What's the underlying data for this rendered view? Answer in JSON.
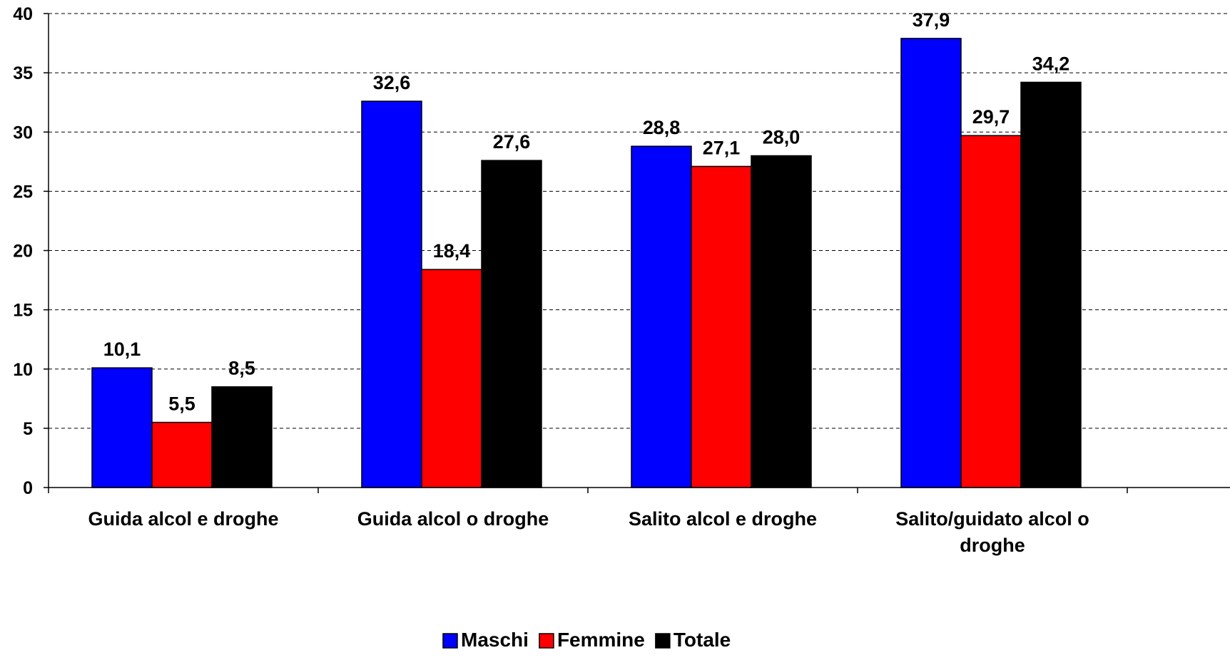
{
  "chart_data": {
    "type": "bar",
    "categories": [
      [
        "Guida alcol e droghe"
      ],
      [
        "Guida alcol o droghe"
      ],
      [
        "Salito alcol e droghe"
      ],
      [
        "Salito/guidato alcol o",
        "droghe"
      ]
    ],
    "series": [
      {
        "name": "Maschi",
        "color": "#0000FF",
        "values": [
          10.1,
          32.6,
          28.8,
          37.9
        ],
        "labels": [
          "10,1",
          "32,6",
          "28,8",
          "37,9"
        ]
      },
      {
        "name": "Femmine",
        "color": "#FF0000",
        "values": [
          5.5,
          18.4,
          27.1,
          29.7
        ],
        "labels": [
          "5,5",
          "18,4",
          "27,1",
          "29,7"
        ]
      },
      {
        "name": "Totale",
        "color": "#000000",
        "values": [
          8.5,
          27.6,
          28.0,
          34.2
        ],
        "labels": [
          "8,5",
          "27,6",
          "28,0",
          "34,2"
        ]
      }
    ],
    "ylim": [
      0,
      40
    ],
    "yticks": [
      0,
      5,
      10,
      15,
      20,
      25,
      30,
      35,
      40
    ],
    "grid": true,
    "legend_position": "bottom"
  }
}
